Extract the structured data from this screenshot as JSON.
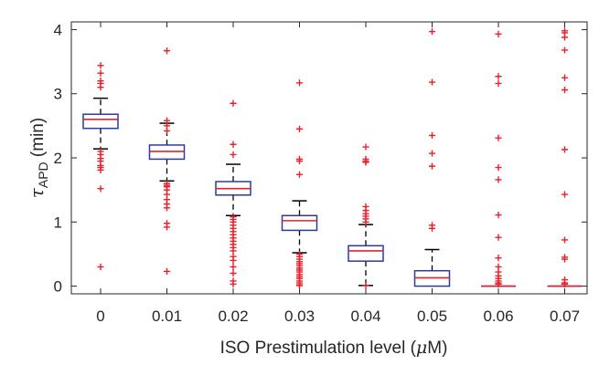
{
  "chart_data": {
    "type": "box",
    "xlabel_main": "ISO Prestimulation level (",
    "xlabel_mu": "μ",
    "xlabel_rest": "M)",
    "ylabel_tau": "τ",
    "ylabel_sub": "APD",
    "ylabel_rest": " (min)",
    "categories": [
      "0",
      "0.01",
      "0.02",
      "0.03",
      "0.04",
      "0.05",
      "0.06",
      "0.07"
    ],
    "yticks": [
      "0",
      "1",
      "2",
      "3",
      "4"
    ],
    "ylim": [
      -0.12,
      4.12
    ],
    "grid": false,
    "colors": {
      "box": "#2b3a9e",
      "median": "#e8202a",
      "whisker": "#000000",
      "outlier": "#e8202a",
      "axis": "#262626"
    },
    "boxes": [
      {
        "q1": 2.46,
        "median": 2.6,
        "q3": 2.68,
        "whisker_low": 2.14,
        "whisker_high": 2.93,
        "outliers": [
          3.44,
          3.32,
          3.2,
          3.16,
          3.1,
          2.1,
          2.05,
          1.99,
          1.95,
          1.88,
          1.85,
          1.81,
          1.52,
          0.3
        ]
      },
      {
        "q1": 1.98,
        "median": 2.1,
        "q3": 2.2,
        "whisker_low": 1.64,
        "whisker_high": 2.54,
        "outliers": [
          3.67,
          2.58,
          2.5,
          2.42,
          1.6,
          1.57,
          1.55,
          1.5,
          1.43,
          1.35,
          1.28,
          1.22,
          0.98,
          0.92,
          0.23
        ]
      },
      {
        "q1": 1.42,
        "median": 1.52,
        "q3": 1.63,
        "whisker_low": 1.1,
        "whisker_high": 1.9,
        "outliers": [
          2.85,
          2.21,
          2.05,
          1.08,
          1.04,
          1.0,
          0.95,
          0.9,
          0.85,
          0.8,
          0.75,
          0.7,
          0.65,
          0.6,
          0.55,
          0.46,
          0.4,
          0.3,
          0.2,
          0.08,
          0.03
        ]
      },
      {
        "q1": 0.87,
        "median": 1.02,
        "q3": 1.1,
        "whisker_low": 0.52,
        "whisker_high": 1.33,
        "outliers": [
          3.17,
          2.45,
          1.98,
          1.95,
          1.74,
          0.5,
          0.46,
          0.42,
          0.38,
          0.35,
          0.32,
          0.28,
          0.25,
          0.22,
          0.18,
          0.15,
          0.12,
          0.08,
          0.05,
          0.02,
          0.01
        ]
      },
      {
        "q1": 0.39,
        "median": 0.55,
        "q3": 0.63,
        "whisker_low": 0.01,
        "whisker_high": 0.96,
        "outliers": [
          2.17,
          1.98,
          1.95,
          1.93,
          1.24,
          1.18,
          1.13,
          1.09,
          1.05,
          1.0,
          0.01
        ]
      },
      {
        "q1": 0.0,
        "median": 0.13,
        "q3": 0.24,
        "whisker_low": 0.0,
        "whisker_high": 0.57,
        "outliers": [
          3.97,
          3.18,
          2.35,
          2.07,
          1.87,
          0.95,
          0.9
        ]
      },
      {
        "q1": 0.0,
        "median": 0.0,
        "q3": 0.0,
        "whisker_low": 0.0,
        "whisker_high": 0.0,
        "outliers": [
          3.93,
          3.27,
          3.16,
          2.31,
          1.85,
          1.66,
          1.11,
          0.76,
          0.44,
          0.3,
          0.22,
          0.16,
          0.12,
          0.08,
          0.05,
          0.03
        ]
      },
      {
        "q1": 0.0,
        "median": 0.0,
        "q3": 0.0,
        "whisker_low": 0.0,
        "whisker_high": 0.0,
        "outliers": [
          3.98,
          3.95,
          3.88,
          3.68,
          3.25,
          3.06,
          2.13,
          1.43,
          0.72,
          0.45,
          0.42,
          0.1,
          0.05,
          0.03
        ]
      }
    ]
  }
}
